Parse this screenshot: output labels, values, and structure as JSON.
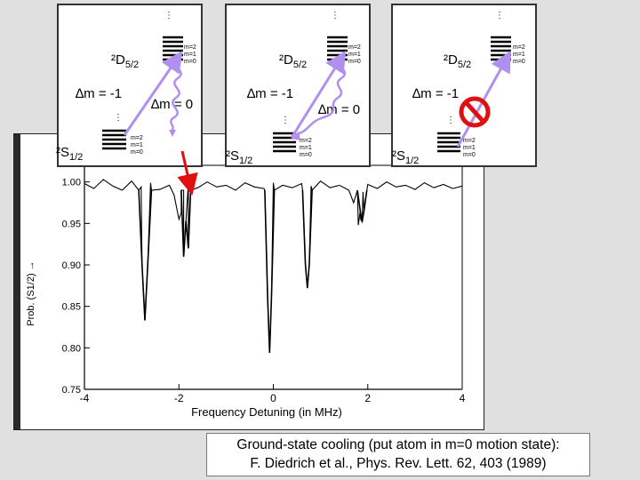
{
  "caption": {
    "line1": "Ground-state cooling (put atom in m=0 motion state):",
    "line2": "F. Diedrich et al., Phys. Rev. Lett. 62, 403 (1989)"
  },
  "panels": [
    {
      "upper": "2D5/2",
      "lower": "2S1/2",
      "upper_levels": [
        "m=2",
        "m=1",
        "m=0"
      ],
      "lower_levels": [
        "m=2",
        "m=1",
        "m=0"
      ],
      "transition_1": "∆m = -1",
      "transition_2": "∆m = 0",
      "blocked": false
    },
    {
      "upper": "2D5/2",
      "lower": "2S1/2",
      "upper_levels": [
        "m=2",
        "m=1",
        "m=0"
      ],
      "lower_levels": [
        "m=2",
        "m=1",
        "m=0"
      ],
      "transition_1": "∆m = -1",
      "transition_2": "∆m = 0",
      "blocked": false
    },
    {
      "upper": "2D5/2",
      "lower": "2S1/2",
      "upper_levels": [
        "m=2",
        "m=1",
        "m=0"
      ],
      "lower_levels": [
        "m=2",
        "m=1",
        "m=0"
      ],
      "transition_1": "∆m = -1",
      "blocked": true
    }
  ],
  "colors": {
    "arrow": "#b090ee",
    "blocked_sign": "#e01010",
    "pointer": "#e01010"
  },
  "chart_data": {
    "type": "line",
    "title": "",
    "xlabel": "Frequency Detuning (in MHz)",
    "ylabel": "Prob. (S1/2) →",
    "xlim": [
      -4,
      4
    ],
    "ylim": [
      0.75,
      1.02
    ],
    "x_ticks": [
      "-4",
      "-2",
      "0",
      "2",
      "4"
    ],
    "y_ticks": [
      "0.75",
      "0.80",
      "0.85",
      "0.90",
      "0.95",
      "1.00"
    ],
    "grid": false,
    "series": [
      {
        "x": [
          -4.0,
          -3.8,
          -3.6,
          -3.4,
          -3.2,
          -3.0,
          -2.8,
          -2.6,
          -2.4,
          -2.2,
          -2.1,
          -2.0,
          -1.95,
          -1.9,
          -1.8,
          -1.6,
          -1.4,
          -1.2,
          -1.0,
          -0.8,
          -0.6,
          -0.4,
          -0.2,
          0.0,
          0.2,
          0.4,
          0.6,
          0.8,
          1.0,
          1.2,
          1.4,
          1.6,
          1.7,
          1.8,
          1.85,
          1.9,
          2.0,
          2.2,
          2.4,
          2.6,
          2.8,
          3.0,
          3.2,
          3.4,
          3.6,
          3.8,
          4.0
        ],
        "y": [
          0.998,
          0.992,
          1.003,
          0.995,
          0.99,
          1.001,
          0.994,
          0.999,
          0.991,
          0.996,
          0.984,
          0.955,
          0.963,
          0.99,
          0.998,
          0.993,
          1.0,
          0.994,
          0.996,
          0.99,
          0.999,
          0.994,
          0.992,
          0.999,
          0.996,
          0.993,
          0.998,
          0.995,
          1.001,
          0.993,
          0.996,
          0.99,
          0.975,
          0.948,
          0.955,
          0.988,
          0.997,
          0.992,
          1.0,
          0.994,
          0.996,
          0.991,
          0.999,
          0.993,
          0.997,
          0.992,
          0.995
        ]
      }
    ],
    "dips": [
      {
        "x": [
          -2.85,
          -2.78,
          -2.72,
          -2.66,
          -2.58
        ],
        "y": [
          0.99,
          0.9,
          0.833,
          0.9,
          0.99
        ]
      },
      {
        "x": [
          -1.95,
          -1.9,
          -1.85,
          -1.8,
          -1.75
        ],
        "y": [
          0.99,
          0.91,
          0.953,
          0.92,
          0.99
        ]
      },
      {
        "x": [
          -0.18,
          -0.12,
          -0.08,
          -0.04,
          0.02
        ],
        "y": [
          0.99,
          0.86,
          0.794,
          0.86,
          0.99
        ]
      },
      {
        "x": [
          0.62,
          0.68,
          0.72,
          0.76,
          0.82
        ],
        "y": [
          0.99,
          0.9,
          0.872,
          0.9,
          0.99
        ]
      },
      {
        "x": [
          1.78,
          1.84,
          1.88,
          1.92,
          1.98
        ],
        "y": [
          0.99,
          0.965,
          0.952,
          0.965,
          0.99
        ]
      }
    ]
  }
}
